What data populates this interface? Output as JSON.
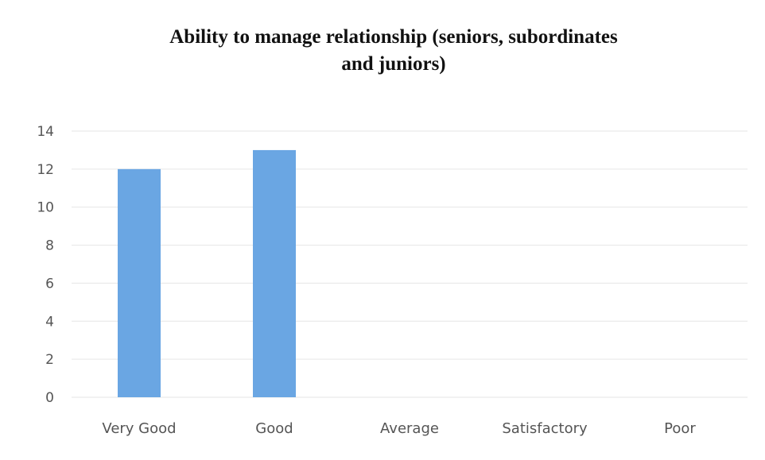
{
  "chart_data": {
    "type": "bar",
    "title_lines": [
      "Ability to manage relationship (seniors, subordinates",
      "and juniors)"
    ],
    "categories": [
      "Very Good",
      "Good",
      "Average",
      "Satisfactory",
      "Poor"
    ],
    "values": [
      12,
      13,
      0,
      0,
      0
    ],
    "yticks": [
      "0",
      "2",
      "4",
      "6",
      "8",
      "10",
      "12",
      "14"
    ],
    "ylim": [
      0,
      14
    ],
    "grid": true,
    "bar_color": "#6aa6e3"
  }
}
